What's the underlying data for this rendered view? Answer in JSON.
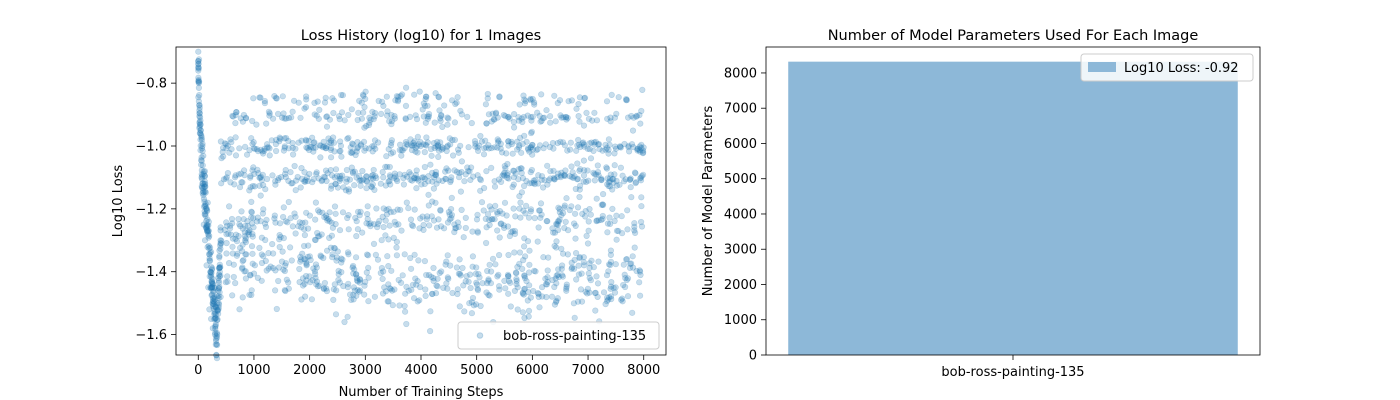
{
  "chart_data": [
    {
      "type": "scatter",
      "title": "Loss History (log10) for 1 Images",
      "xlabel": "Number of Training Steps",
      "ylabel": "Log10 Loss",
      "xlim": [
        -400,
        8400
      ],
      "ylim": [
        -1.665,
        -0.685
      ],
      "xticks": [
        0,
        1000,
        2000,
        3000,
        4000,
        5000,
        6000,
        7000,
        8000
      ],
      "xtick_labels": [
        "0",
        "1000",
        "2000",
        "3000",
        "4000",
        "5000",
        "6000",
        "7000",
        "8000"
      ],
      "yticks": [
        -1.6,
        -1.4,
        -1.2,
        -1.0,
        -0.8
      ],
      "ytick_labels": [
        "−1.6",
        "−1.4",
        "−1.2",
        "−1.0",
        "−0.8"
      ],
      "legend_position": "lower-right",
      "series": [
        {
          "name": "bob-ross-painting-135",
          "color": "#1f77b4",
          "alpha": 0.25,
          "x_range": [
            0,
            8000
          ],
          "initial_points": [
            [
              0,
              -0.7
            ],
            [
              0,
              -0.73
            ],
            [
              0,
              -0.74
            ],
            [
              0,
              -0.75
            ],
            [
              0,
              -0.76
            ],
            [
              10,
              -0.8
            ],
            [
              20,
              -0.87
            ],
            [
              30,
              -0.96
            ],
            [
              40,
              -0.98
            ],
            [
              60,
              -1.1
            ],
            [
              80,
              -1.15
            ],
            [
              100,
              -1.25
            ],
            [
              120,
              -1.3
            ],
            [
              150,
              -1.38
            ],
            [
              180,
              -1.45
            ],
            [
              200,
              -1.52
            ],
            [
              230,
              -1.55
            ],
            [
              260,
              -1.58
            ],
            [
              300,
              -1.6
            ],
            [
              320,
              -1.62
            ],
            [
              340,
              -1.5
            ],
            [
              360,
              -1.42
            ],
            [
              380,
              -1.35
            ],
            [
              400,
              -1.3
            ]
          ],
          "bands": [
            {
              "center": -0.85,
              "spread": 0.008,
              "x_from": 800
            },
            {
              "center": -0.91,
              "spread": 0.008,
              "x_from": 600
            },
            {
              "center": -1.0,
              "spread": 0.01,
              "x_from": 400
            },
            {
              "center": -1.1,
              "spread": 0.012,
              "x_from": 400
            },
            {
              "center": -1.23,
              "spread": 0.02,
              "x_from": 400
            },
            {
              "center_start": -1.34,
              "center_end": -1.43,
              "spread": 0.035,
              "x_from": 400
            }
          ]
        }
      ]
    },
    {
      "type": "bar",
      "title": "Number of Model Parameters Used For Each Image",
      "xlabel": "",
      "ylabel": "Number of Model Parameters",
      "categories": [
        "bob-ross-painting-135"
      ],
      "values": [
        8320
      ],
      "ylim": [
        0,
        8736
      ],
      "yticks": [
        0,
        1000,
        2000,
        3000,
        4000,
        5000,
        6000,
        7000,
        8000
      ],
      "ytick_labels": [
        "0",
        "1000",
        "2000",
        "3000",
        "4000",
        "5000",
        "6000",
        "7000",
        "8000"
      ],
      "legend_position": "upper-right",
      "series": [
        {
          "name": "Log10 Loss: -0.92",
          "color": "#8db8d8",
          "values": [
            8320
          ]
        }
      ]
    }
  ]
}
